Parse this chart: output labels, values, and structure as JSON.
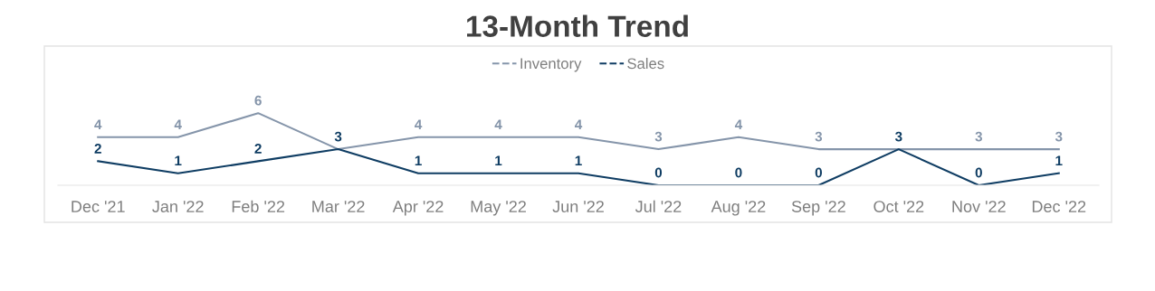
{
  "chart_data": {
    "type": "line",
    "title": "13-Month Trend",
    "categories": [
      "Dec '21",
      "Jan '22",
      "Feb '22",
      "Mar '22",
      "Apr '22",
      "May '22",
      "Jun '22",
      "Jul '22",
      "Aug '22",
      "Sep '22",
      "Oct '22",
      "Nov '22",
      "Dec '22"
    ],
    "series": [
      {
        "name": "Inventory",
        "color": "#8595aa",
        "values": [
          4,
          4,
          6,
          3,
          4,
          4,
          4,
          3,
          4,
          3,
          3,
          3,
          3
        ],
        "value_labels": [
          "4",
          "4",
          "6",
          null,
          "4",
          "4",
          "4",
          "3",
          "4",
          "3",
          null,
          "3",
          "3"
        ]
      },
      {
        "name": "Sales",
        "color": "#0f3d63",
        "values": [
          2,
          1,
          2,
          3,
          1,
          1,
          1,
          0,
          0,
          0,
          3,
          0,
          1
        ],
        "value_labels": [
          "2",
          "1",
          "2",
          "3",
          "1",
          "1",
          "1",
          "0",
          "0",
          "0",
          "3",
          "0",
          "1"
        ]
      }
    ],
    "ylim": [
      0,
      11.5
    ],
    "tick_labels": "x",
    "legend": "top",
    "grid": false,
    "line_style": "solid"
  }
}
